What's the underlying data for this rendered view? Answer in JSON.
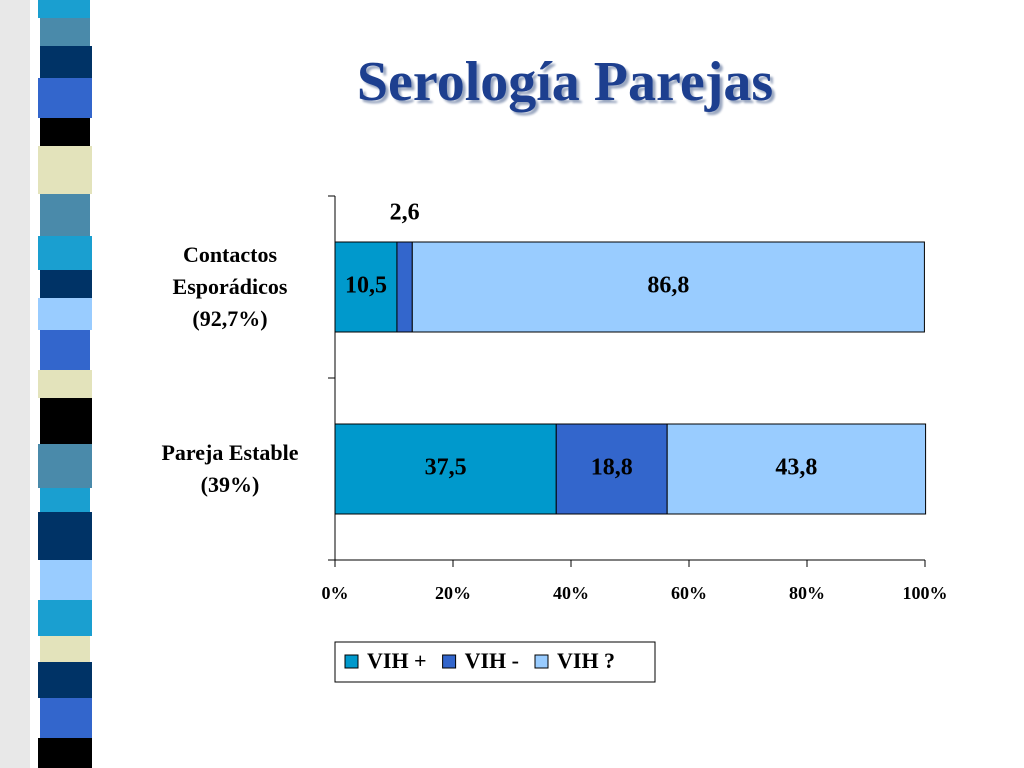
{
  "chart_data": {
    "type": "bar",
    "orientation": "horizontal",
    "stacked": true,
    "title": "Serología Parejas",
    "categories": [
      "Contactos Esporádicos (92,7%)",
      "Pareja Estable (39%)"
    ],
    "series": [
      {
        "name": "VIH +",
        "color": "#0099cc",
        "values": [
          10.5,
          37.5
        ],
        "value_labels": [
          "10,5",
          "37,5"
        ]
      },
      {
        "name": "VIH -",
        "color": "#3366cc",
        "values": [
          2.6,
          18.8
        ],
        "value_labels": [
          "2,6",
          "18,8"
        ]
      },
      {
        "name": "VIH ?",
        "color": "#99ccff",
        "values": [
          86.8,
          43.8
        ],
        "value_labels": [
          "86,8",
          "43,8"
        ]
      }
    ],
    "xlim": [
      0,
      100
    ],
    "xticks": [
      {
        "value": 0,
        "label": "0%"
      },
      {
        "value": 20,
        "label": "20%"
      },
      {
        "value": 40,
        "label": "40%"
      },
      {
        "value": 60,
        "label": "60%"
      },
      {
        "value": 80,
        "label": "80%"
      },
      {
        "value": 100,
        "label": "100%"
      }
    ],
    "legend": "bottom"
  }
}
